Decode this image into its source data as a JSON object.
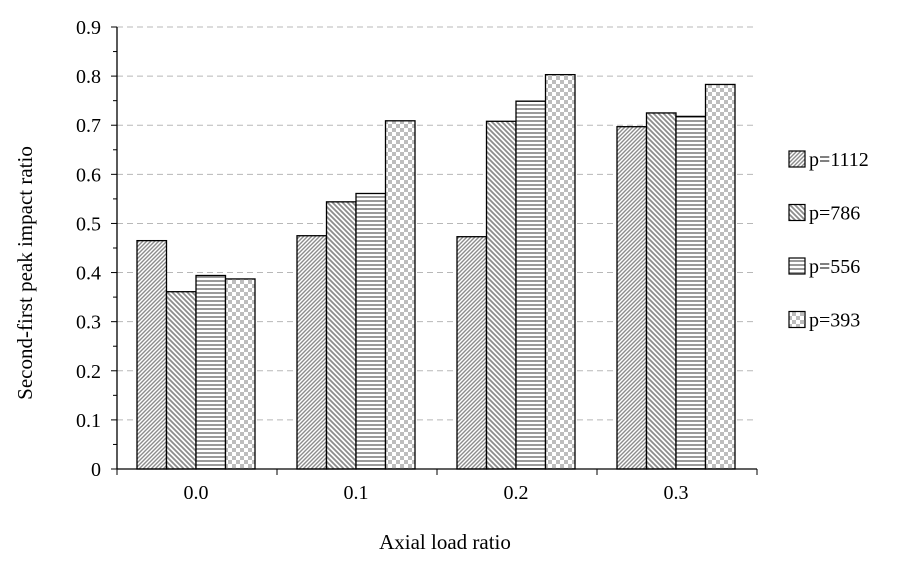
{
  "chart_data": {
    "type": "bar",
    "xlabel": "Axial load ratio",
    "ylabel": "Second-first peak impact ratio",
    "categories": [
      "0.0",
      "0.1",
      "0.2",
      "0.3"
    ],
    "ylim": [
      0,
      0.9
    ],
    "yticks": [
      "0",
      "0.1",
      "0.2",
      "0.3",
      "0.4",
      "0.5",
      "0.6",
      "0.7",
      "0.8",
      "0.9"
    ],
    "grid": "horizontal dashed",
    "legend_position": "right",
    "series": [
      {
        "name": "p=1112",
        "pattern": "diagonal-dense",
        "values": [
          0.465,
          0.475,
          0.473,
          0.697
        ]
      },
      {
        "name": "p=786",
        "pattern": "diagonal-wide",
        "values": [
          0.361,
          0.544,
          0.708,
          0.725
        ]
      },
      {
        "name": "p=556",
        "pattern": "horizontal",
        "values": [
          0.394,
          0.561,
          0.749,
          0.718
        ]
      },
      {
        "name": "p=393",
        "pattern": "checker",
        "values": [
          0.387,
          0.709,
          0.803,
          0.783
        ]
      }
    ]
  }
}
